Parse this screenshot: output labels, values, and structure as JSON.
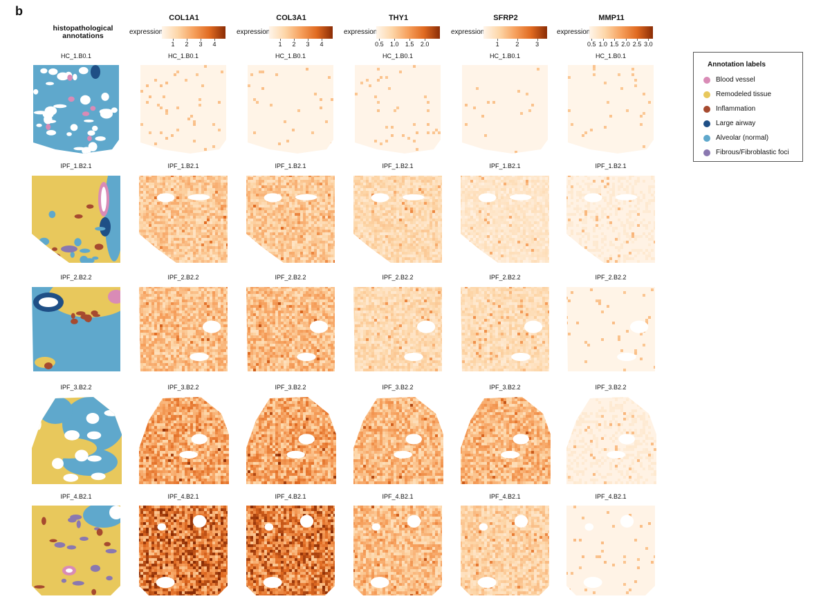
{
  "panel_letter": "b",
  "annotation_header": {
    "line1": "histopathological",
    "line2": "annotations"
  },
  "genes": [
    {
      "name": "COL1A1",
      "colorbar_label": "expression",
      "ticks": [
        "1",
        "2",
        "3",
        "4"
      ],
      "tick_values": [
        1,
        2,
        3,
        4
      ],
      "range": [
        0.2,
        4.8
      ],
      "intensity": [
        0.05,
        0.35,
        0.4,
        0.55,
        0.78
      ]
    },
    {
      "name": "COL3A1",
      "colorbar_label": "expression",
      "ticks": [
        "1",
        "2",
        "3",
        "4"
      ],
      "tick_values": [
        1,
        2,
        3,
        4
      ],
      "range": [
        0.2,
        4.8
      ],
      "intensity": [
        0.05,
        0.35,
        0.42,
        0.55,
        0.75
      ]
    },
    {
      "name": "THY1",
      "colorbar_label": "expression",
      "ticks": [
        "0.5",
        "1.0",
        "1.5",
        "2.0"
      ],
      "tick_values": [
        0.5,
        1.0,
        1.5,
        2.0
      ],
      "range": [
        0.4,
        2.5
      ],
      "intensity": [
        0.04,
        0.25,
        0.25,
        0.45,
        0.42
      ]
    },
    {
      "name": "SFRP2",
      "colorbar_label": "expression",
      "ticks": [
        "1",
        "2",
        "3"
      ],
      "tick_values": [
        1,
        2,
        3
      ],
      "range": [
        0.3,
        3.5
      ],
      "intensity": [
        0.04,
        0.15,
        0.22,
        0.45,
        0.3
      ]
    },
    {
      "name": "MMP11",
      "colorbar_label": "expression",
      "ticks": [
        "0.5",
        "1.0",
        "1.5",
        "2.0",
        "2.5",
        "3.0"
      ],
      "tick_values": [
        0.5,
        1.0,
        1.5,
        2.0,
        2.5,
        3.0
      ],
      "range": [
        0.4,
        3.2
      ],
      "intensity": [
        0.03,
        0.08,
        0.05,
        0.08,
        0.06
      ]
    }
  ],
  "samples": [
    {
      "id": "HC_1.B0.1",
      "label": "HC_1.B0.1",
      "gene_label": "HC_1.B0.1",
      "dominant": "alveolar"
    },
    {
      "id": "IPF_1.B2.1",
      "label": "IPF_1.B2.1",
      "gene_label": "IPF_1.B2.1",
      "dominant": "remodeled"
    },
    {
      "id": "IPF_2.B2.2",
      "label": "IPF_2.B2.2",
      "gene_label": "IPF_2.B2.2",
      "dominant": "alveolar"
    },
    {
      "id": "IPF_3.B2.2",
      "label": "IPF_3.B2.2",
      "gene_label": "IPF_3.B2.2",
      "dominant": "mixed"
    },
    {
      "id": "IPF_4.B2.1",
      "label": "IPF_4.B2.1",
      "gene_label": "IPF_4.B2.1",
      "dominant": "remodeled"
    }
  ],
  "legend": {
    "title": "Annotation labels",
    "items": [
      {
        "label": "Blood vessel",
        "color": "#d98bb6"
      },
      {
        "label": "Remodeled tissue",
        "color": "#e8c85c"
      },
      {
        "label": "Inflammation",
        "color": "#a64a2f"
      },
      {
        "label": "Large airway",
        "color": "#1f4f86"
      },
      {
        "label": "Alveolar (normal)",
        "color": "#5fa8cc"
      },
      {
        "label": "Fibrous/Fibroblastic foci",
        "color": "#8a78b0"
      }
    ]
  }
}
